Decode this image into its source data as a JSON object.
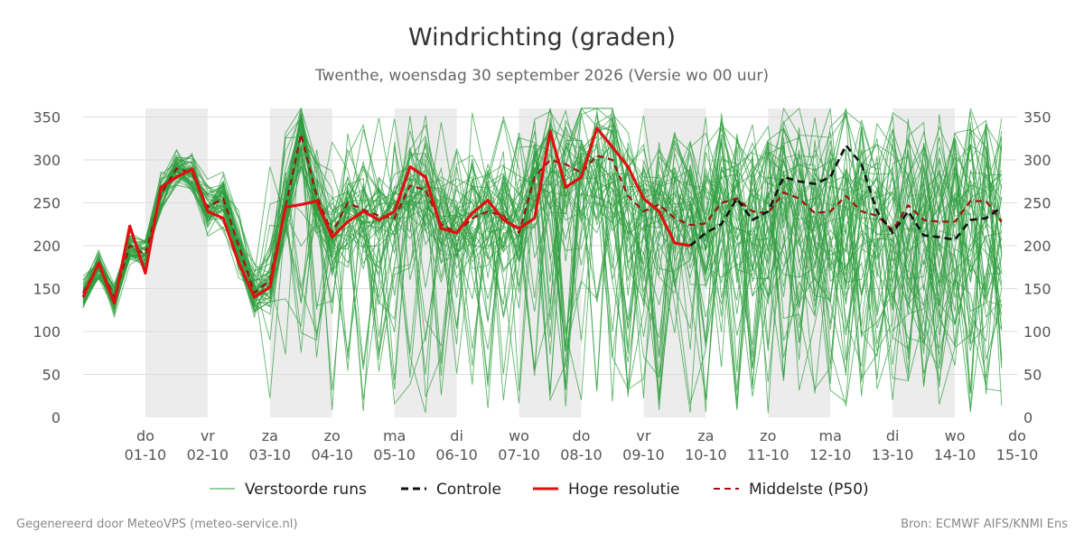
{
  "title": "Windrichting (graden)",
  "subtitle": "Twenthe, woensdag 30 september 2026 (Versie wo 00 uur)",
  "footer_left": "Gegenereerd door MeteoVPS (meteo-service.nl)",
  "footer_right": "Bron: ECMWF AIFS/KNMI Ens",
  "colors": {
    "members": "#2e9e3e",
    "control": "#111111",
    "hires": "#e01010",
    "median": "#a01010",
    "night_band": "#ececec",
    "grid": "#dddddd"
  },
  "chart_data": {
    "type": "line",
    "ylim": [
      0,
      360
    ],
    "y_ticks": [
      0,
      50,
      100,
      150,
      200,
      250,
      300,
      350
    ],
    "x_start_day": "30-09",
    "x_range_days": [
      0,
      15
    ],
    "x_ticks": [
      {
        "day": 1,
        "weekday": "do",
        "date": "01-10"
      },
      {
        "day": 2,
        "weekday": "vr",
        "date": "02-10"
      },
      {
        "day": 3,
        "weekday": "za",
        "date": "03-10"
      },
      {
        "day": 4,
        "weekday": "zo",
        "date": "04-10"
      },
      {
        "day": 5,
        "weekday": "ma",
        "date": "05-10"
      },
      {
        "day": 6,
        "weekday": "di",
        "date": "06-10"
      },
      {
        "day": 7,
        "weekday": "wo",
        "date": "07-10"
      },
      {
        "day": 8,
        "weekday": "do",
        "date": "08-10"
      },
      {
        "day": 9,
        "weekday": "vr",
        "date": "09-10"
      },
      {
        "day": 10,
        "weekday": "za",
        "date": "10-10"
      },
      {
        "day": 11,
        "weekday": "zo",
        "date": "11-10"
      },
      {
        "day": 12,
        "weekday": "ma",
        "date": "12-10"
      },
      {
        "day": 13,
        "weekday": "di",
        "date": "13-10"
      },
      {
        "day": 14,
        "weekday": "wo",
        "date": "14-10"
      },
      {
        "day": 15,
        "weekday": "do",
        "date": "15-10"
      }
    ],
    "shaded_bands": [
      [
        1,
        2
      ],
      [
        3,
        4
      ],
      [
        5,
        6
      ],
      [
        7,
        8
      ],
      [
        9,
        10
      ],
      [
        11,
        12
      ],
      [
        13,
        14
      ]
    ],
    "legend": [
      {
        "key": "members",
        "label": "Verstoorde runs"
      },
      {
        "key": "control",
        "label": "Controle"
      },
      {
        "key": "hires",
        "label": "Hoge resolutie"
      },
      {
        "key": "median",
        "label": "Middelste (P50)"
      }
    ],
    "series": [
      {
        "key": "hires",
        "step_days": 0.25,
        "values": [
          140,
          180,
          133,
          223,
          168,
          268,
          280,
          289,
          240,
          232,
          180,
          140,
          152,
          245,
          248,
          252,
          210,
          228,
          240,
          230,
          240,
          292,
          280,
          220,
          215,
          238,
          253,
          230,
          220,
          232,
          333,
          268,
          280,
          337,
          315,
          292,
          255,
          240,
          203,
          200
        ]
      },
      {
        "key": "median",
        "step_days": 0.25,
        "values": [
          145,
          178,
          140,
          200,
          190,
          260,
          290,
          285,
          245,
          255,
          200,
          145,
          160,
          245,
          330,
          258,
          215,
          250,
          242,
          235,
          232,
          270,
          265,
          225,
          215,
          232,
          240,
          235,
          215,
          280,
          300,
          295,
          285,
          305,
          300,
          258,
          240,
          248,
          232,
          224,
          226,
          250,
          255,
          240,
          238,
          262,
          255,
          238,
          240,
          258,
          240,
          235,
          218,
          247,
          230,
          228,
          228,
          252,
          252,
          228
        ]
      },
      {
        "key": "control",
        "step_days": 0.25,
        "start_index": 39,
        "values": [
          200,
          215,
          225,
          255,
          230,
          240,
          280,
          275,
          272,
          280,
          317,
          295,
          240,
          215,
          240,
          212,
          210,
          207,
          230,
          232,
          245
        ]
      }
    ],
    "members": {
      "count": 50,
      "step_days": 0.25,
      "seed": 20260930,
      "scatter_from_day": 3,
      "notes": "Ensemble spread"
    }
  }
}
